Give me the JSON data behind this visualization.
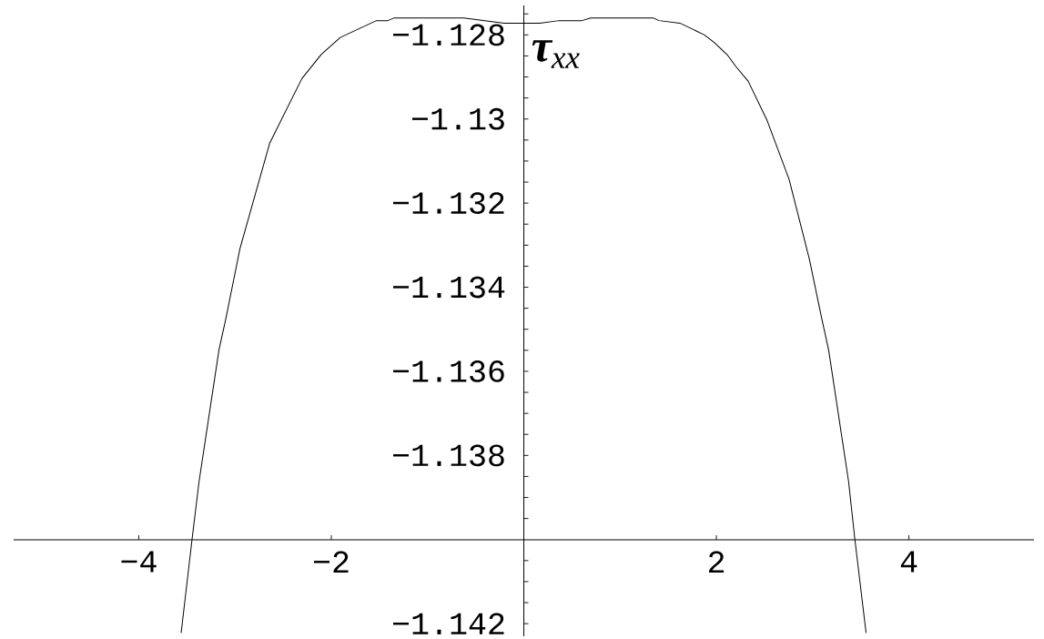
{
  "chart_data": {
    "type": "line",
    "ylabel": "**τ**$_{xx}$",
    "x": [
      -3.56,
      -3.447,
      -3.374,
      -3.167,
      -3.095,
      -2.949,
      -2.641,
      -2.306,
      -2.103,
      -1.906,
      -1.531,
      -1.413,
      -1.35,
      -0.623,
      -0.205,
      0.165,
      0.367,
      0.603,
      0.695,
      1.347,
      1.404,
      1.621,
      1.876,
      1.977,
      2.112,
      2.202,
      2.33,
      2.528,
      2.755,
      2.966,
      3.094,
      3.166,
      3.373,
      3.439,
      3.555
    ],
    "series": [
      {
        "color": "#000000",
        "values": [
          -1.14222,
          -1.14,
          -1.13862,
          -1.13549,
          -1.13474,
          -1.13308,
          -1.13058,
          -1.12904,
          -1.12846,
          -1.12806,
          -1.12766,
          -1.12766,
          -1.1276,
          -1.1276,
          -1.12772,
          -1.12772,
          -1.12766,
          -1.12766,
          -1.1276,
          -1.1276,
          -1.12766,
          -1.12772,
          -1.128,
          -1.12818,
          -1.12847,
          -1.12875,
          -1.1291,
          -1.13004,
          -1.13143,
          -1.13333,
          -1.13474,
          -1.13549,
          -1.13861,
          -1.14,
          -1.14222
        ]
      }
    ],
    "xlim": [
      -5.3,
      5.3
    ],
    "ylim": [
      -1.1423,
      -1.1273
    ],
    "xticks": [
      {
        "value": -4,
        "label": "−4"
      },
      {
        "value": -2,
        "label": "−2"
      },
      2,
      4
    ],
    "yticks": [
      {
        "value": -1.1275,
        "label": null
      },
      {
        "value": -1.128,
        "label": "−1.128"
      },
      {
        "value": -1.1285,
        "label": null
      },
      {
        "value": -1.129,
        "label": null
      },
      {
        "value": -1.1295,
        "label": null
      },
      {
        "value": -1.13,
        "label": "−1.13"
      },
      {
        "value": -1.1305,
        "label": null
      },
      {
        "value": -1.131,
        "label": null
      },
      {
        "value": -1.1315,
        "label": null
      },
      {
        "value": -1.132,
        "label": "−1.132"
      },
      {
        "value": -1.1325,
        "label": null
      },
      {
        "value": -1.133,
        "label": null
      },
      {
        "value": -1.1335,
        "label": null
      },
      {
        "value": -1.134,
        "label": "−1.134"
      },
      {
        "value": -1.1345,
        "label": null
      },
      {
        "value": -1.135,
        "label": null
      },
      {
        "value": -1.1355,
        "label": null
      },
      {
        "value": -1.136,
        "label": "−1.136"
      },
      {
        "value": -1.1365,
        "label": null
      },
      {
        "value": -1.137,
        "label": null
      },
      {
        "value": -1.1375,
        "label": null
      },
      {
        "value": -1.138,
        "label": "−1.138"
      },
      {
        "value": -1.1385,
        "label": null
      },
      {
        "value": -1.139,
        "label": null
      },
      {
        "value": -1.1395,
        "label": null
      },
      {
        "value": -1.1405,
        "label": null
      },
      {
        "value": -1.141,
        "label": null
      },
      {
        "value": -1.1415,
        "label": null
      },
      {
        "value": -1.142,
        "label": "−1.142"
      }
    ]
  }
}
